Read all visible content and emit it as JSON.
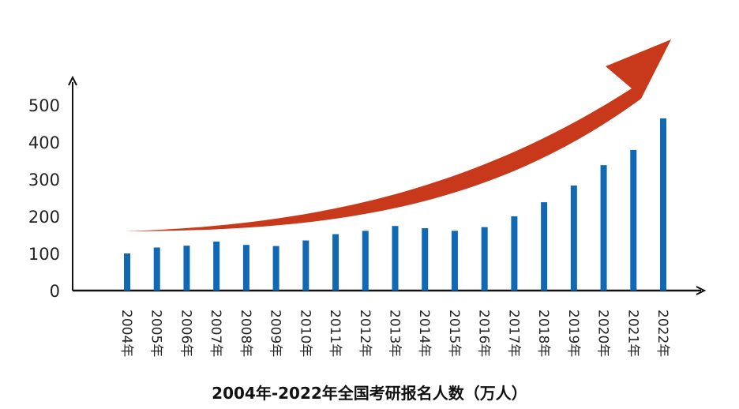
{
  "chart_data": {
    "type": "bar",
    "title": "2004年-2022年全国考研报名人数（万人）",
    "categories": [
      "2004年",
      "2005年",
      "2006年",
      "2007年",
      "2008年",
      "2009年",
      "2010年",
      "2011年",
      "2012年",
      "2013年",
      "2014年",
      "2015年",
      "2016年",
      "2017年",
      "2018年",
      "2019年",
      "2020年",
      "2021年",
      "2022年"
    ],
    "values": [
      100,
      116,
      121,
      132,
      123,
      120,
      135,
      152,
      161,
      174,
      168,
      161,
      171,
      200,
      238,
      283,
      338,
      379,
      464
    ],
    "ylim": [
      0,
      500
    ],
    "yticks": [
      "0",
      "100",
      "200",
      "300",
      "400",
      "500"
    ],
    "grid": false,
    "legend": "none",
    "colors": {
      "bar": "#1168b4",
      "trend_arrow": "#c8391b",
      "axis": "#111111"
    }
  }
}
